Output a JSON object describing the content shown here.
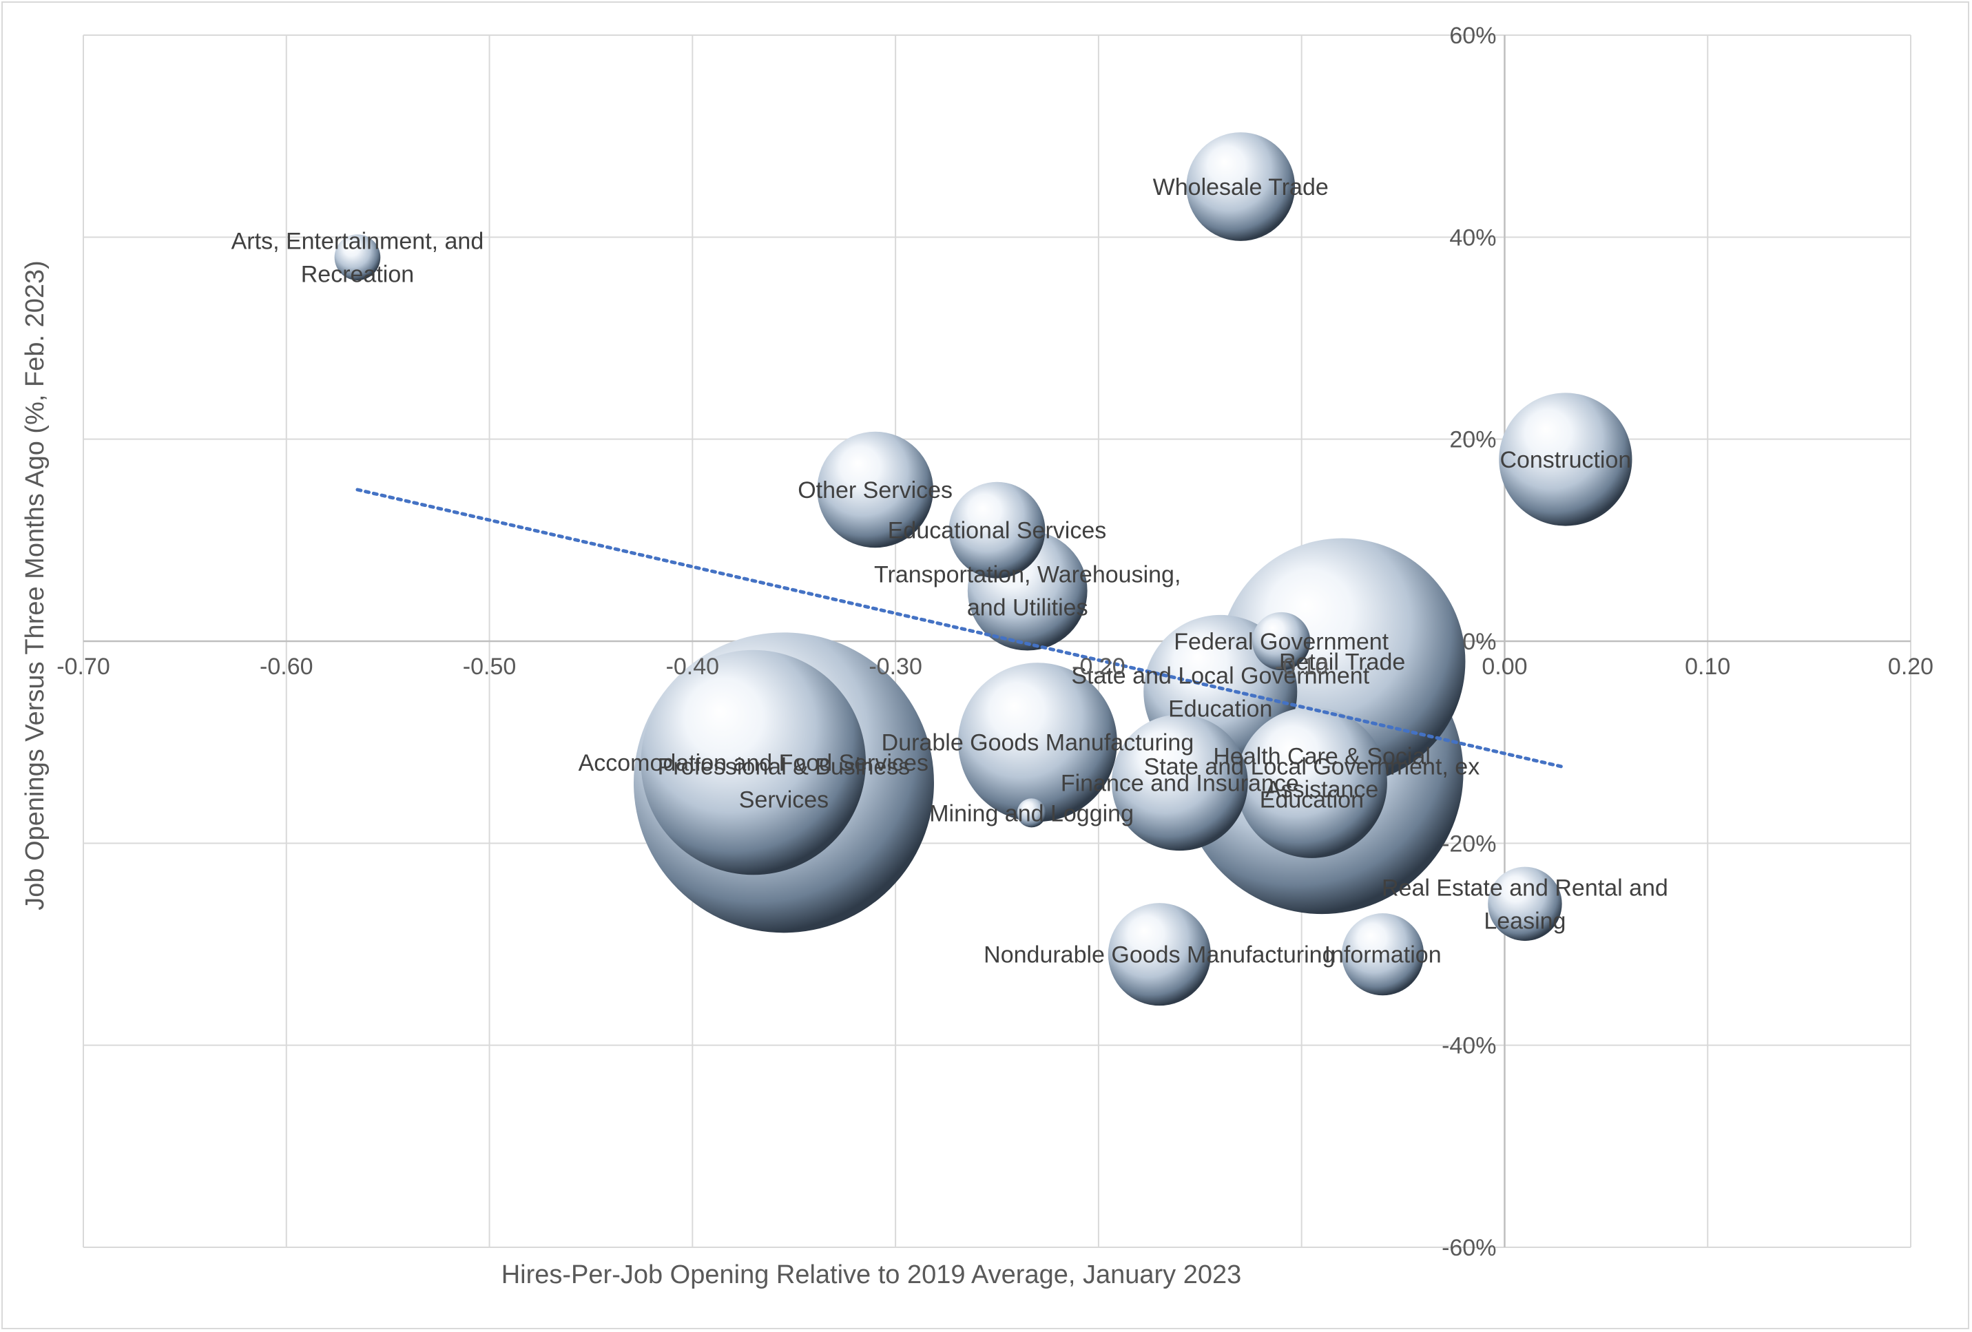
{
  "chart_data": {
    "type": "bubble",
    "title": "",
    "xlabel": "Hires-Per-Job Opening Relative to 2019 Average, January 2023",
    "ylabel": "Job Openings Versus Three Months Ago (%, Feb. 2023)",
    "xlim": [
      -0.7,
      0.2
    ],
    "ylim": [
      -60,
      60
    ],
    "x_ticks": [
      -0.7,
      -0.6,
      -0.5,
      -0.4,
      -0.3,
      -0.2,
      -0.1,
      0.0,
      0.1,
      0.2
    ],
    "x_tick_labels": [
      "-0.70",
      "-0.60",
      "-0.50",
      "-0.40",
      "-0.30",
      "-0.20",
      "-0.10",
      "0.00",
      "0.10",
      "0.20"
    ],
    "y_ticks": [
      -60,
      -40,
      -20,
      0,
      20,
      40,
      60
    ],
    "y_tick_labels": [
      "-60%",
      "-40%",
      "-20%",
      "0%",
      "20%",
      "40%",
      "60%"
    ],
    "grid": true,
    "legend": "none",
    "series": [
      {
        "label": "Arts, Entertainment, and Recreation",
        "x": -0.565,
        "y": 38,
        "size": 2.5
      },
      {
        "label": "Wholesale Trade",
        "x": -0.13,
        "y": 45,
        "size": 14
      },
      {
        "label": "Construction",
        "x": 0.03,
        "y": 18,
        "size": 21
      },
      {
        "label": "Other Services",
        "x": -0.31,
        "y": 15,
        "size": 16
      },
      {
        "label": "Educational Services",
        "x": -0.25,
        "y": 11,
        "size": 11
      },
      {
        "label": "Transportation, Warehousing, and Utilities",
        "x": -0.235,
        "y": 5,
        "size": 17
      },
      {
        "label": "Federal Government",
        "x": -0.11,
        "y": 0,
        "size": 4
      },
      {
        "label": "Retail Trade",
        "x": -0.08,
        "y": -2,
        "size": 72
      },
      {
        "label": "State and Local Government Education",
        "x": -0.14,
        "y": -5,
        "size": 28
      },
      {
        "label": "Durable Goods Manufacturing",
        "x": -0.23,
        "y": -10,
        "size": 30
      },
      {
        "label": "State and Local Government, ex Education",
        "x": -0.095,
        "y": -14,
        "size": 27
      },
      {
        "label": "Health Care & Social Assistance",
        "x": -0.09,
        "y": -13,
        "size": 95
      },
      {
        "label": "Finance and Insurance",
        "x": -0.16,
        "y": -14,
        "size": 22
      },
      {
        "label": "Accomodation and Food Services",
        "x": -0.37,
        "y": -12,
        "size": 60
      },
      {
        "label": "Professional & Business Services",
        "x": -0.355,
        "y": -14,
        "size": 107
      },
      {
        "label": "Mining and Logging",
        "x": -0.233,
        "y": -17,
        "size": 1
      },
      {
        "label": "Real Estate and Rental and Leasing",
        "x": 0.01,
        "y": -26,
        "size": 6.5
      },
      {
        "label": "Nondurable Goods Manufacturing",
        "x": -0.17,
        "y": -31,
        "size": 12.5
      },
      {
        "label": "Information",
        "x": -0.06,
        "y": -31,
        "size": 8
      }
    ],
    "trendline": {
      "style": "dotted",
      "color": "#4472c4",
      "start": {
        "x": -0.565,
        "y": 15
      },
      "end": {
        "x": 0.03,
        "y": -12.5
      }
    }
  }
}
